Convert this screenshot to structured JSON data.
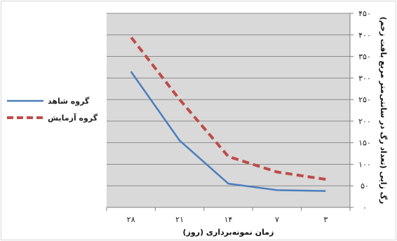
{
  "chart_data": {
    "type": "line",
    "x": [
      "۳",
      "۷",
      "۱۴",
      "۲۱",
      "۲۸"
    ],
    "xlabel": "زمان نمونه‌برداری (روز)",
    "ylabel": "رگ زایی (تعداد رگ در سانتی‌متر مربع بافت زخم)",
    "ylim": [
      0,
      450
    ],
    "yticks": [
      0,
      50,
      100,
      150,
      200,
      250,
      300,
      350,
      400,
      450
    ],
    "ytick_labels": [
      "۰",
      "۵۰",
      "۱۰۰",
      "۱۵۰",
      "۲۰۰",
      "۲۵۰",
      "۳۰۰",
      "۳۵۰",
      "۴۰۰",
      "۴۵۰"
    ],
    "grid": true,
    "legend_position": "left",
    "series": [
      {
        "name": "گروه شاهد",
        "values": [
          38,
          40,
          55,
          155,
          315
        ],
        "color": "#4a7ebb",
        "style": "solid"
      },
      {
        "name": "گروه آزمایش",
        "values": [
          65,
          82,
          118,
          250,
          395
        ],
        "color": "#be4b48",
        "style": "dashed"
      }
    ]
  }
}
